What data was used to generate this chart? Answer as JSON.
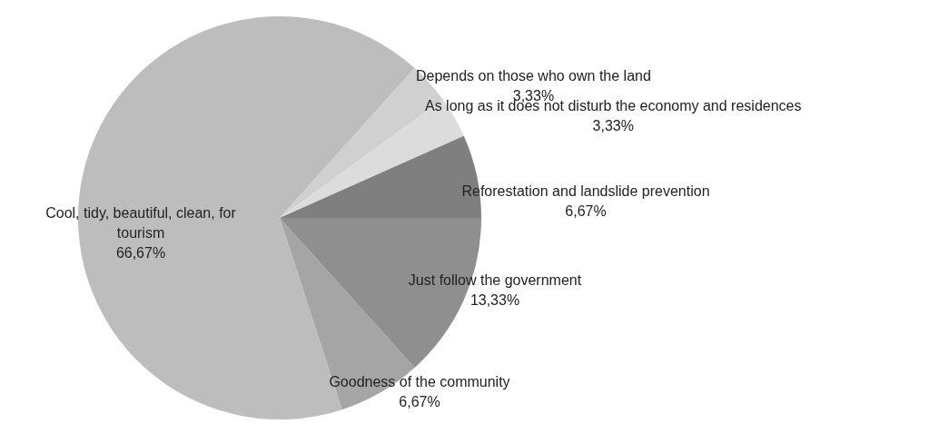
{
  "chart_data": {
    "type": "pie",
    "categories": [
      "Just follow the government",
      "Goodness of the community",
      "Cool, tidy, beautiful, clean, for tourism",
      "Depends on those who own the land",
      "As long as it does not disturb the economy and residences",
      "Reforestation and landslide prevention"
    ],
    "values": [
      13.33,
      6.67,
      66.67,
      3.33,
      3.33,
      6.67
    ],
    "value_labels": [
      "13,33%",
      "6,67%",
      "66,67%",
      "3,33%",
      "3,33%",
      "6,67%"
    ],
    "colors": [
      "#8f8f8f",
      "#a5a5a5",
      "#bdbdbd",
      "#d0d0d0",
      "#dcdcdc",
      "#7f7f7f"
    ],
    "legend": false
  }
}
